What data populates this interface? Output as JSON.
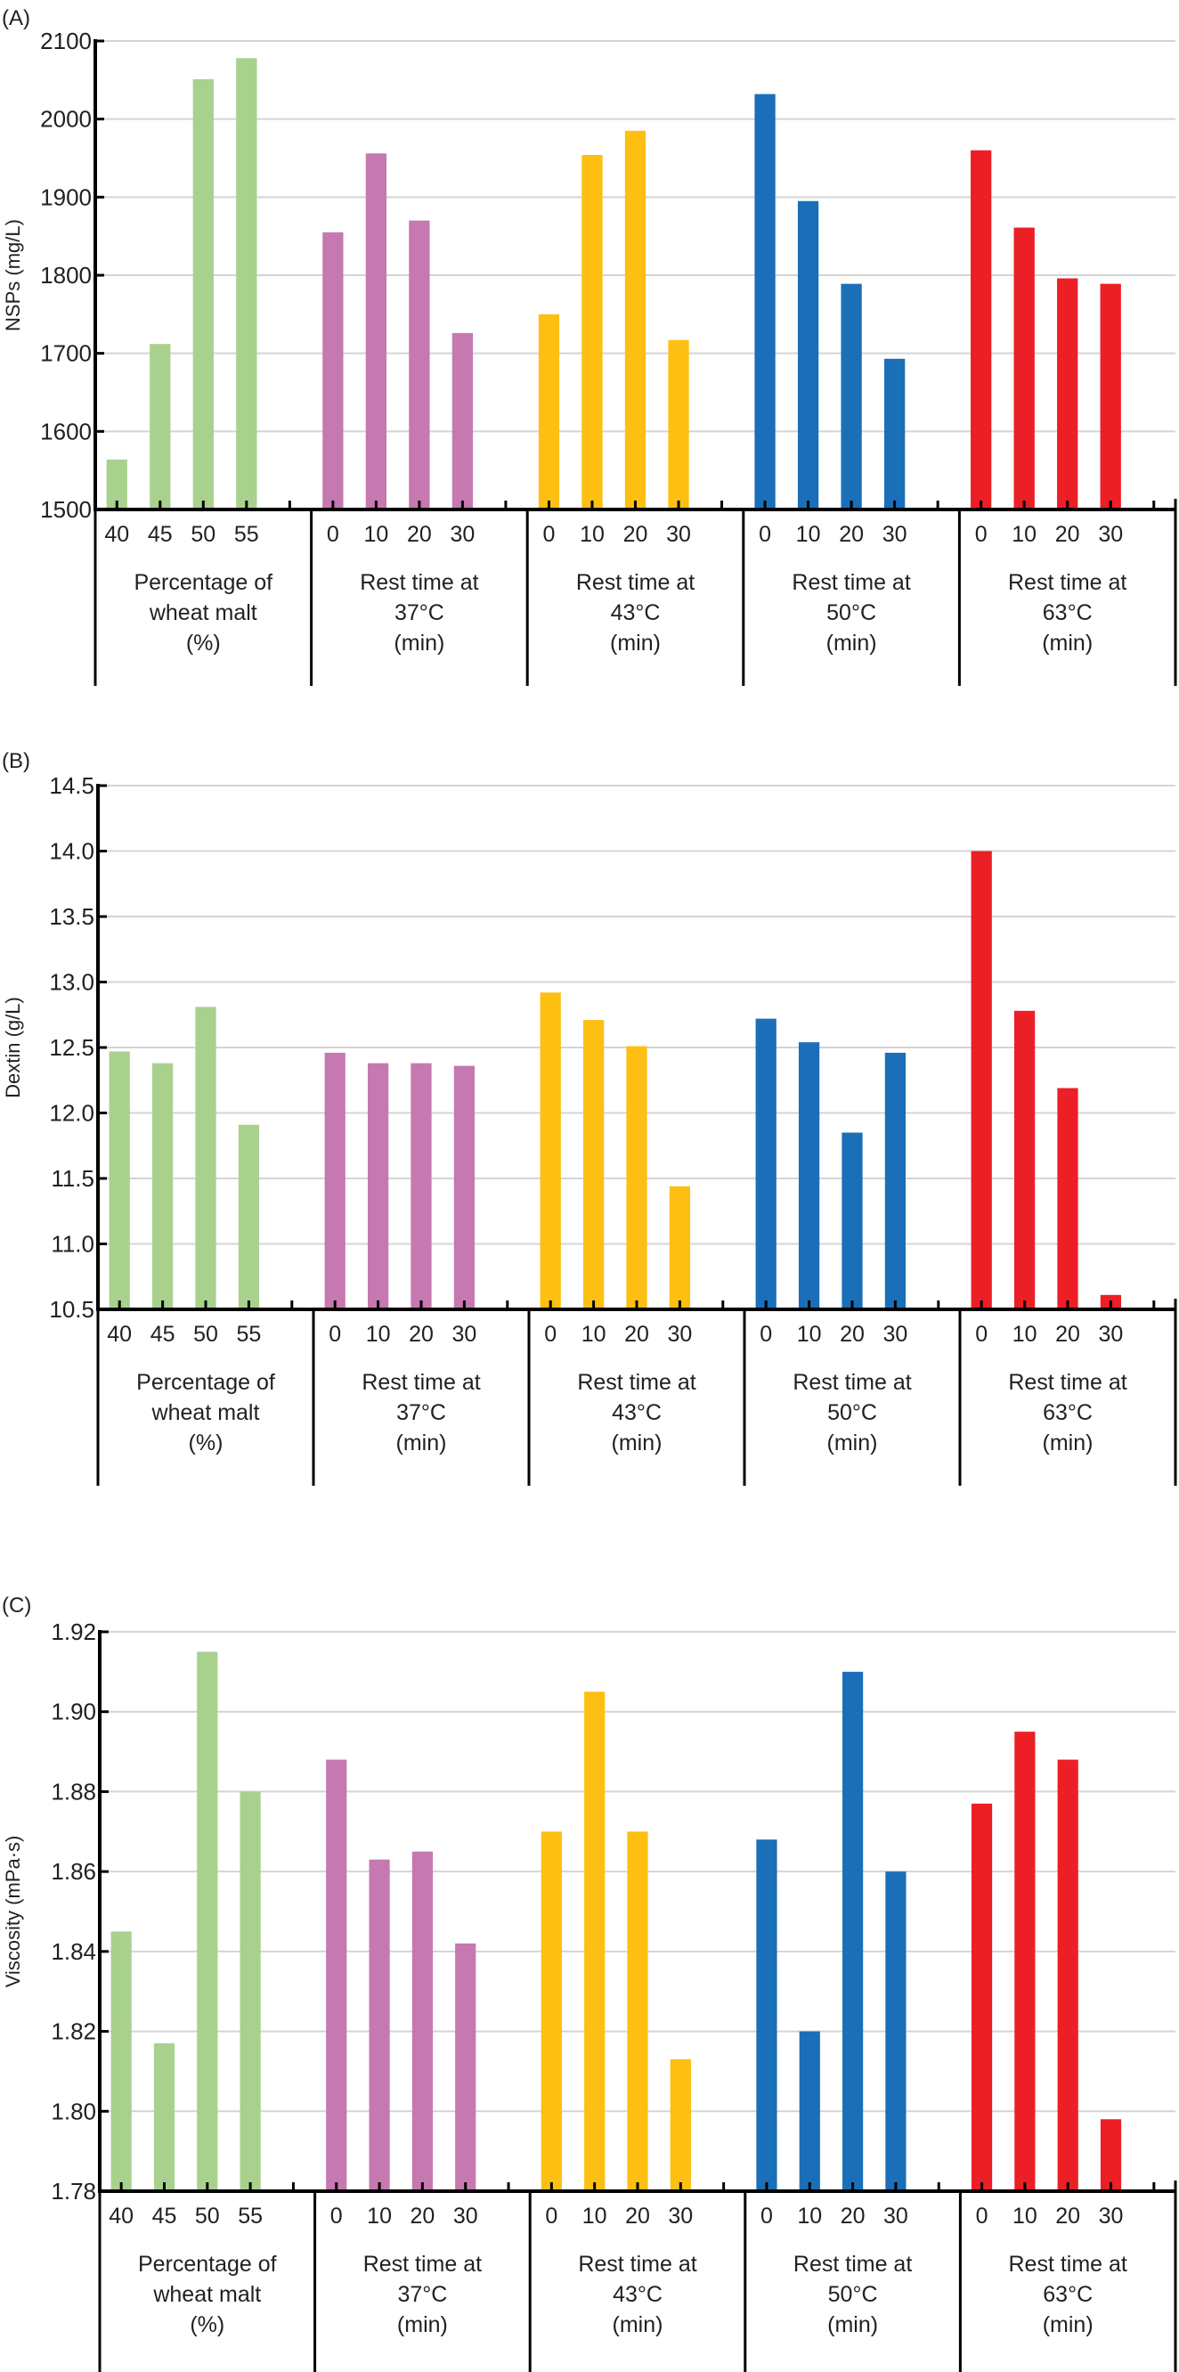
{
  "colors": {
    "wheat_malt": "#a9d18e",
    "rest_37": "#c678b0",
    "rest_43": "#fdbf12",
    "rest_50": "#1a6fb8",
    "rest_63": "#ec1f26",
    "gridline": "#d4d4d4",
    "axis": "#000000"
  },
  "chart_data": [
    {
      "type": "bar",
      "panel_label": "(A)",
      "title": "",
      "ylabel": "NSPs (mg/L)",
      "ylim": [
        1500,
        2100
      ],
      "yticks": [
        "1500",
        "1600",
        "1700",
        "1800",
        "1900",
        "2000",
        "2100"
      ],
      "grid": true,
      "groups": [
        {
          "label": [
            "Percentage of",
            "wheat malt",
            "(%)"
          ],
          "color_key": "wheat_malt",
          "categories": [
            "40",
            "45",
            "50",
            "55"
          ],
          "values": [
            1564,
            1712,
            2051,
            2078
          ]
        },
        {
          "label": [
            "Rest time at",
            "37°C",
            "(min)"
          ],
          "color_key": "rest_37",
          "categories": [
            "0",
            "10",
            "20",
            "30"
          ],
          "values": [
            1855,
            1956,
            1870,
            1726
          ]
        },
        {
          "label": [
            "Rest time at",
            "43°C",
            "(min)"
          ],
          "color_key": "rest_43",
          "categories": [
            "0",
            "10",
            "20",
            "30"
          ],
          "values": [
            1750,
            1954,
            1985,
            1717
          ]
        },
        {
          "label": [
            "Rest time at",
            "50°C",
            "(min)"
          ],
          "color_key": "rest_50",
          "categories": [
            "0",
            "10",
            "20",
            "30"
          ],
          "values": [
            2032,
            1895,
            1789,
            1693
          ]
        },
        {
          "label": [
            "Rest time at",
            "63°C",
            "(min)"
          ],
          "color_key": "rest_63",
          "categories": [
            "0",
            "10",
            "20",
            "30"
          ],
          "values": [
            1960,
            1861,
            1796,
            1789
          ]
        }
      ]
    },
    {
      "type": "bar",
      "panel_label": "(B)",
      "title": "",
      "ylabel": "Dextin (g/L)",
      "ylim": [
        10.5,
        14.5
      ],
      "yticks": [
        "10.5",
        "11.0",
        "11.5",
        "12.0",
        "12.5",
        "13.0",
        "13.5",
        "14.0",
        "14.5"
      ],
      "grid": true,
      "groups": [
        {
          "label": [
            "Percentage of",
            "wheat malt",
            "(%)"
          ],
          "color_key": "wheat_malt",
          "categories": [
            "40",
            "45",
            "50",
            "55"
          ],
          "values": [
            12.47,
            12.38,
            12.81,
            11.91
          ]
        },
        {
          "label": [
            "Rest time at",
            "37°C",
            "(min)"
          ],
          "color_key": "rest_37",
          "categories": [
            "0",
            "10",
            "20",
            "30"
          ],
          "values": [
            12.46,
            12.38,
            12.38,
            12.36
          ]
        },
        {
          "label": [
            "Rest time at",
            "43°C",
            "(min)"
          ],
          "color_key": "rest_43",
          "categories": [
            "0",
            "10",
            "20",
            "30"
          ],
          "values": [
            12.92,
            12.71,
            12.51,
            11.44
          ]
        },
        {
          "label": [
            "Rest time at",
            "50°C",
            "(min)"
          ],
          "color_key": "rest_50",
          "categories": [
            "0",
            "10",
            "20",
            "30"
          ],
          "values": [
            12.72,
            12.54,
            11.85,
            12.46
          ]
        },
        {
          "label": [
            "Rest time at",
            "63°C",
            "(min)"
          ],
          "color_key": "rest_63",
          "categories": [
            "0",
            "10",
            "20",
            "30"
          ],
          "values": [
            14.0,
            12.78,
            12.19,
            10.61
          ]
        }
      ]
    },
    {
      "type": "bar",
      "panel_label": "(C)",
      "title": "",
      "ylabel": "Viscosity (mPa·s)",
      "ylim": [
        1.78,
        1.92
      ],
      "yticks": [
        "1.78",
        "1.80",
        "1.82",
        "1.84",
        "1.86",
        "1.88",
        "1.90",
        "1.92"
      ],
      "grid": true,
      "groups": [
        {
          "label": [
            "Percentage of",
            "wheat malt",
            "(%)"
          ],
          "color_key": "wheat_malt",
          "categories": [
            "40",
            "45",
            "50",
            "55"
          ],
          "values": [
            1.845,
            1.817,
            1.915,
            1.88
          ]
        },
        {
          "label": [
            "Rest time at",
            "37°C",
            "(min)"
          ],
          "color_key": "rest_37",
          "categories": [
            "0",
            "10",
            "20",
            "30"
          ],
          "values": [
            1.888,
            1.863,
            1.865,
            1.842
          ]
        },
        {
          "label": [
            "Rest time at",
            "43°C",
            "(min)"
          ],
          "color_key": "rest_43",
          "categories": [
            "0",
            "10",
            "20",
            "30"
          ],
          "values": [
            1.87,
            1.905,
            1.87,
            1.813
          ]
        },
        {
          "label": [
            "Rest time at",
            "50°C",
            "(min)"
          ],
          "color_key": "rest_50",
          "categories": [
            "0",
            "10",
            "20",
            "30"
          ],
          "values": [
            1.868,
            1.82,
            1.91,
            1.86
          ]
        },
        {
          "label": [
            "Rest time at",
            "63°C",
            "(min)"
          ],
          "color_key": "rest_63",
          "categories": [
            "0",
            "10",
            "20",
            "30"
          ],
          "values": [
            1.877,
            1.895,
            1.888,
            1.798
          ]
        }
      ]
    }
  ]
}
